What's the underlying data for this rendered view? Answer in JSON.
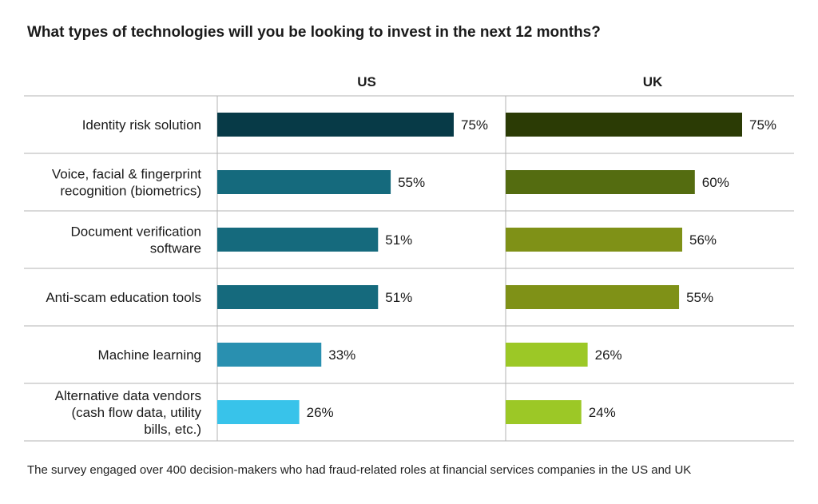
{
  "chart_data": {
    "type": "bar",
    "orientation": "horizontal",
    "title": "What types of technologies will you be looking to invest in the next 12 months?",
    "categories": [
      [
        "Identity risk solution"
      ],
      [
        "Voice, facial & fingerprint",
        "recognition (biometrics)"
      ],
      [
        "Document verification",
        "software"
      ],
      [
        "Anti-scam education tools"
      ],
      [
        "Machine learning"
      ],
      [
        "Alternative data vendors",
        "(cash flow data, utility",
        "bills, etc.)"
      ]
    ],
    "series": [
      {
        "name": "US",
        "values": [
          75,
          55,
          51,
          51,
          33,
          26
        ],
        "labels": [
          "75%",
          "55%",
          "51%",
          "51%",
          "33%",
          "26%"
        ],
        "colors": [
          "#073a47",
          "#156a7d",
          "#156a7d",
          "#156a7d",
          "#2990b0",
          "#38c3ea"
        ]
      },
      {
        "name": "UK",
        "values": [
          75,
          60,
          56,
          55,
          26,
          24
        ],
        "labels": [
          "75%",
          "60%",
          "56%",
          "55%",
          "26%",
          "24%"
        ],
        "colors": [
          "#2b3b05",
          "#546c10",
          "#7f9117",
          "#7f9117",
          "#9cc826",
          "#9cc826"
        ]
      }
    ],
    "xlim": [
      0,
      100
    ],
    "legend": "column headers",
    "grid": "horizontal row separators"
  },
  "footnote": "The survey engaged over 400 decision-makers who had fraud-related roles at financial services companies in the US and UK"
}
